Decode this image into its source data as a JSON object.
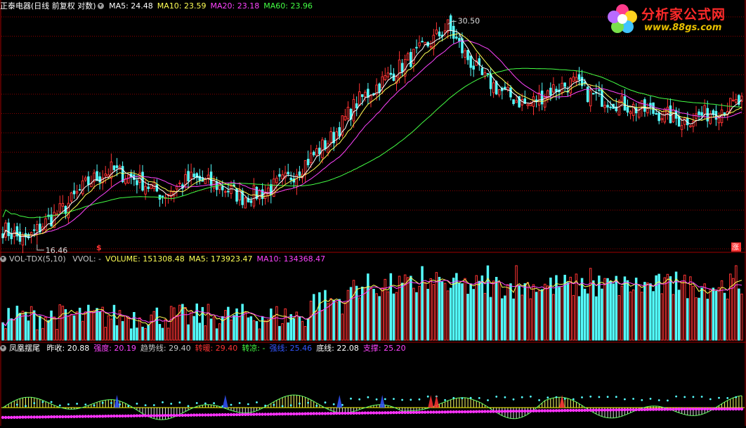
{
  "main_panel": {
    "title": "正泰电器(日线 前复权 对数)",
    "indicators": [
      {
        "label": "MA5: 24.48",
        "color": "#ffffff"
      },
      {
        "label": "MA10: 23.59",
        "color": "#ffff55"
      },
      {
        "label": "MA20: 23.18",
        "color": "#ff44ff"
      },
      {
        "label": "MA60: 23.96",
        "color": "#44ff44"
      }
    ],
    "high_label": "30.50",
    "low_label": "16.46",
    "marker_left": "$",
    "marker_right": "涨"
  },
  "volume_panel": {
    "title": "VOL-TDX(5,10)",
    "indicators": [
      {
        "label": "VVOL: -",
        "color": "#c8c8c8"
      },
      {
        "label": "VOLUME: 151308.48",
        "color": "#ffff55"
      },
      {
        "label": "MA5: 173923.47",
        "color": "#ffff55"
      },
      {
        "label": "MA10: 134368.47",
        "color": "#ff44ff"
      }
    ]
  },
  "indicator_panel": {
    "title": "凤凰摆尾",
    "indicators": [
      {
        "label": "昨收: 20.88",
        "color": "#ffffff"
      },
      {
        "label": "强度: 20.19",
        "color": "#ff44ff"
      },
      {
        "label": "趋势线: 29.40",
        "color": "#c8c8c8"
      },
      {
        "label": "转暖: 29.40",
        "color": "#ff3333"
      },
      {
        "label": "转凉: -",
        "color": "#44ff44"
      },
      {
        "label": "强线: 25.46",
        "color": "#3355ff"
      },
      {
        "label": "底线: 22.08",
        "color": "#ffffff"
      },
      {
        "label": "支撑: 25.20",
        "color": "#ff44ff"
      }
    ]
  },
  "logo": {
    "name": "分析家公式网",
    "url": "www.88gs.com",
    "icon": "flower-icon"
  },
  "colors": {
    "up": "#ff3333",
    "down": "#54fcfc",
    "grid": "#8b0000",
    "ma5": "#ffffff",
    "ma10": "#ffff55",
    "ma20": "#ff44ff",
    "ma60": "#44ff44"
  },
  "chart_data": {
    "type": "candlestick",
    "scale": "log",
    "days": 260,
    "anchors_close": [
      [
        0,
        17.2
      ],
      [
        8,
        16.6
      ],
      [
        14,
        17.4
      ],
      [
        22,
        18.3
      ],
      [
        30,
        19.6
      ],
      [
        38,
        20.3
      ],
      [
        48,
        19.7
      ],
      [
        56,
        18.9
      ],
      [
        66,
        19.8
      ],
      [
        76,
        19.4
      ],
      [
        84,
        18.8
      ],
      [
        92,
        19.1
      ],
      [
        100,
        19.8
      ],
      [
        108,
        21.0
      ],
      [
        116,
        22.3
      ],
      [
        124,
        24.5
      ],
      [
        132,
        25.8
      ],
      [
        140,
        27.2
      ],
      [
        148,
        28.6
      ],
      [
        156,
        30.3
      ],
      [
        162,
        28.0
      ],
      [
        168,
        26.3
      ],
      [
        176,
        25.1
      ],
      [
        184,
        24.3
      ],
      [
        192,
        25.4
      ],
      [
        200,
        25.9
      ],
      [
        206,
        25.0
      ],
      [
        214,
        24.6
      ],
      [
        222,
        24.1
      ],
      [
        230,
        23.8
      ],
      [
        238,
        23.3
      ],
      [
        246,
        23.7
      ],
      [
        252,
        24.1
      ],
      [
        259,
        24.5
      ]
    ],
    "high": 30.5,
    "low": 16.46,
    "last": {
      "MA5": 24.48,
      "MA10": 23.59,
      "MA20": 23.18,
      "MA60": 23.96,
      "VOLUME": 151308.48,
      "VOL_MA5": 173923.47,
      "VOL_MA10": 134368.47
    }
  }
}
